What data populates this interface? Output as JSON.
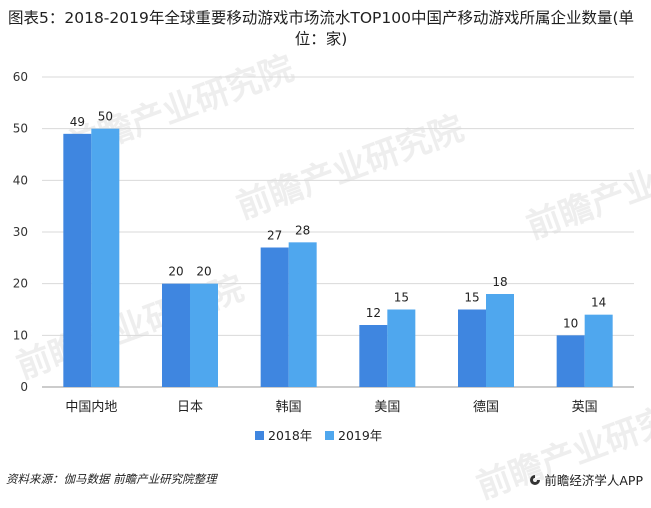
{
  "title": "图表5：2018-2019年全球重要移动游戏市场流水TOP100中国产移动游戏所属企业数量(单位：家)",
  "source": "资料来源：伽马数据 前瞻产业研究院整理",
  "brand": "前瞻经济学人APP",
  "watermark_text": "前瞻产业研究院",
  "colors": {
    "2018年": "#3f86e0",
    "2019年": "#4fa7ee"
  },
  "chart_data": {
    "type": "bar",
    "title": "图表5：2018-2019年全球重要移动游戏市场流水TOP100中国产移动游戏所属企业数量(单位：家)",
    "categories": [
      "中国内地",
      "日本",
      "韩国",
      "美国",
      "德国",
      "英国"
    ],
    "series": [
      {
        "name": "2018年",
        "values": [
          49,
          20,
          27,
          12,
          15,
          10
        ]
      },
      {
        "name": "2019年",
        "values": [
          50,
          20,
          28,
          15,
          18,
          14
        ]
      }
    ],
    "ylim": [
      0,
      60
    ],
    "yticks": [
      0,
      10,
      20,
      30,
      40,
      50,
      60
    ],
    "xlabel": "",
    "ylabel": "",
    "grid": true,
    "legend": "bottom"
  }
}
